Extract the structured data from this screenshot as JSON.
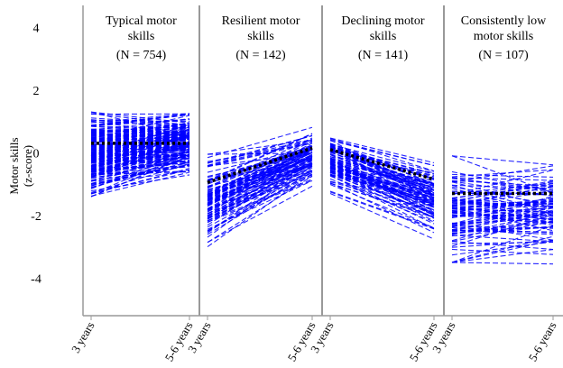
{
  "chart_data": {
    "type": "line",
    "ylabel": "Motor skills\n(z-score)",
    "ylim": [
      -5.2,
      4.7
    ],
    "yticks": [
      4,
      2,
      0,
      -2,
      -4
    ],
    "x_categories": [
      "3 years",
      "5-6 years"
    ],
    "individual_line_color": "#0000ff",
    "mean_line_color": "#000000",
    "divider_color": "#999999",
    "panels": [
      {
        "title": "Typical motor\nskills",
        "n_label": "(N = 754)",
        "mean": [
          0.3,
          0.3
        ],
        "start_range": [
          -1.4,
          1.3
        ],
        "end_range": [
          -1.0,
          1.65
        ],
        "lines_drawn": 220
      },
      {
        "title": "Resilient motor\nskills",
        "n_label": "(N = 142)",
        "mean": [
          -0.95,
          0.15
        ],
        "start_range": [
          -3.0,
          -0.05
        ],
        "end_range": [
          -1.2,
          0.95
        ],
        "lines_drawn": 110
      },
      {
        "title": "Declining motor\nskills",
        "n_label": "(N = 141)",
        "mean": [
          0.1,
          -0.85
        ],
        "start_range": [
          -1.3,
          0.75
        ],
        "end_range": [
          -3.2,
          0.15
        ],
        "lines_drawn": 110
      },
      {
        "title": "Consistently low\nmotor skills",
        "n_label": "(N = 107)",
        "mean": [
          -1.3,
          -1.3
        ],
        "start_range": [
          -3.5,
          -0.1
        ],
        "end_range": [
          -3.55,
          0.2
        ],
        "lines_drawn": 95
      }
    ]
  }
}
